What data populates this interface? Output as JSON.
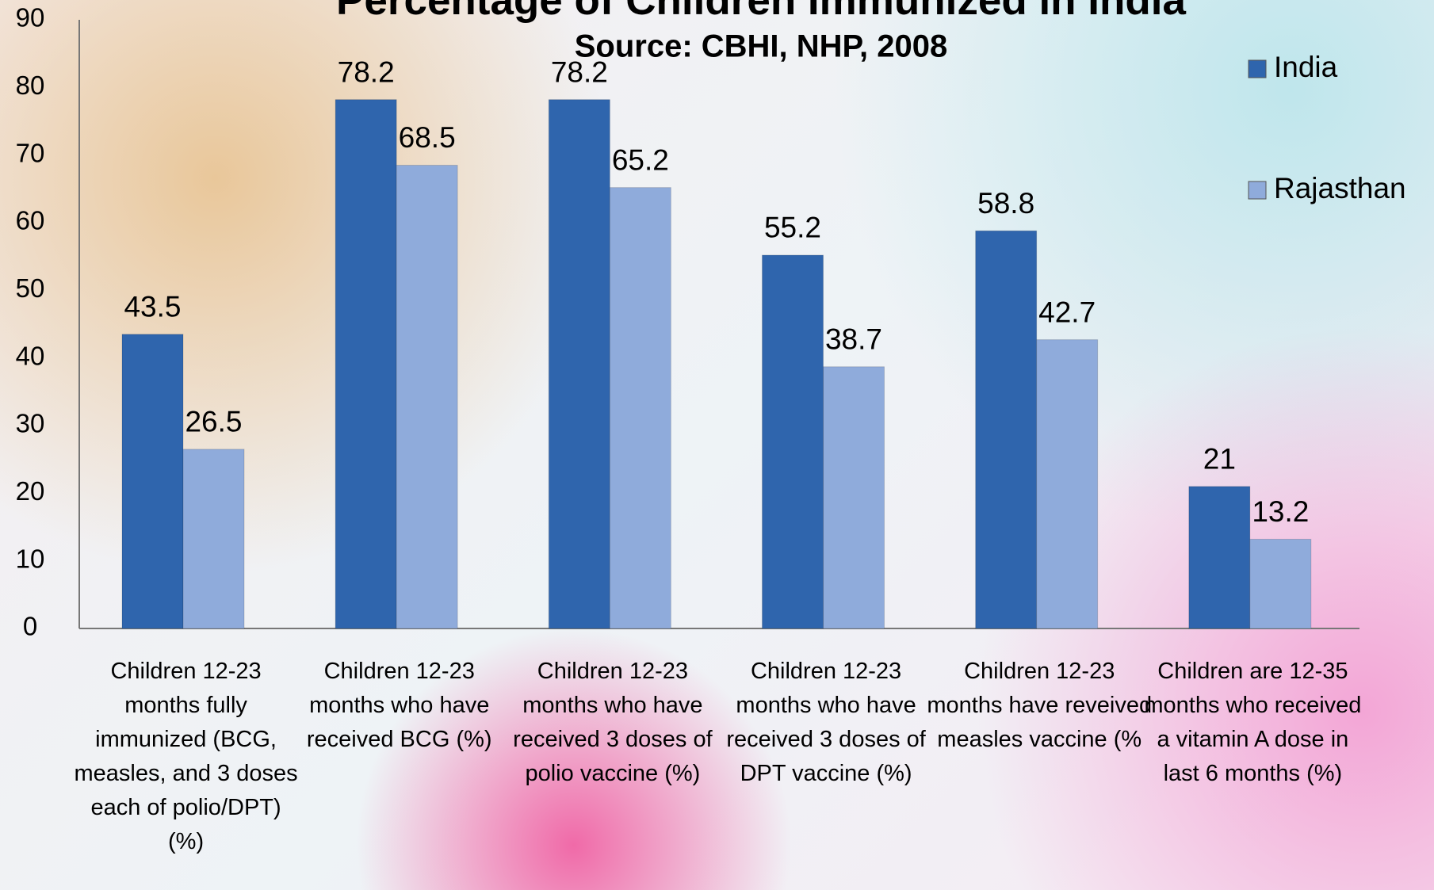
{
  "chart_data": {
    "type": "bar",
    "title": "Percentage of Children Immunized in India",
    "subtitle": "Source: CBHI, NHP, 2008",
    "categories": [
      "Children 12-23 months fully immunized (BCG, measles, and 3 doses each of polio/DPT) (%)",
      "Children 12-23 months who have received BCG (%)",
      "Children 12-23 months who have received 3 doses of polio vaccine (%)",
      "Children 12-23 months who have received 3 doses of DPT vaccine (%)",
      "Children 12-23 months have reveived measles vaccine (%",
      "Children are 12-35 months who received a vitamin A dose in last 6 months (%)"
    ],
    "series": [
      {
        "name": "India",
        "color": "#2f65ad",
        "values": [
          43.5,
          78.2,
          78.2,
          55.2,
          58.8,
          21
        ]
      },
      {
        "name": "Rajasthan",
        "color": "#8fabdb",
        "values": [
          26.5,
          68.5,
          65.2,
          38.7,
          42.7,
          13.2
        ]
      }
    ],
    "ylim": [
      0,
      90
    ],
    "yticks": [
      0,
      10,
      20,
      30,
      40,
      50,
      60,
      70,
      80,
      90
    ],
    "grid": false,
    "legend": "right"
  }
}
